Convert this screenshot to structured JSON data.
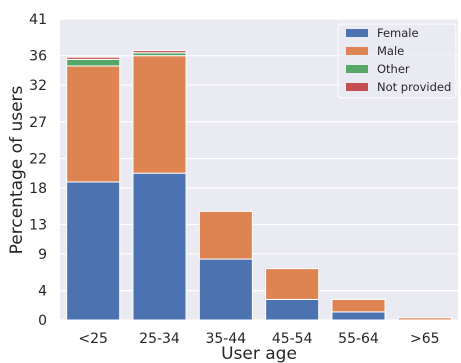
{
  "chart_data": {
    "type": "bar",
    "stacked": true,
    "categories": [
      "<25",
      "25-34",
      "35-44",
      "45-54",
      "55-64",
      ">65"
    ],
    "series": [
      {
        "name": "Female",
        "values": [
          18.8,
          20.0,
          8.3,
          2.8,
          1.1,
          0.0
        ],
        "color": "#4C72B0"
      },
      {
        "name": "Male",
        "values": [
          15.8,
          16.0,
          6.5,
          4.2,
          1.7,
          0.3
        ],
        "color": "#DD8452"
      },
      {
        "name": "Other",
        "values": [
          0.9,
          0.4,
          0.0,
          0.0,
          0.0,
          0.0
        ],
        "color": "#55A868"
      },
      {
        "name": "Not provided",
        "values": [
          0.3,
          0.3,
          0.0,
          0.0,
          0.0,
          0.0
        ],
        "color": "#C44E52"
      }
    ],
    "xlabel": "User age",
    "ylabel": "Percentage of users",
    "yticks": [
      0,
      4,
      9,
      13,
      18,
      22,
      27,
      32,
      36,
      41
    ],
    "ylim": [
      0,
      41
    ],
    "grid": "horizontal",
    "legend_position": "top-right",
    "background": "#EAEAF2"
  }
}
